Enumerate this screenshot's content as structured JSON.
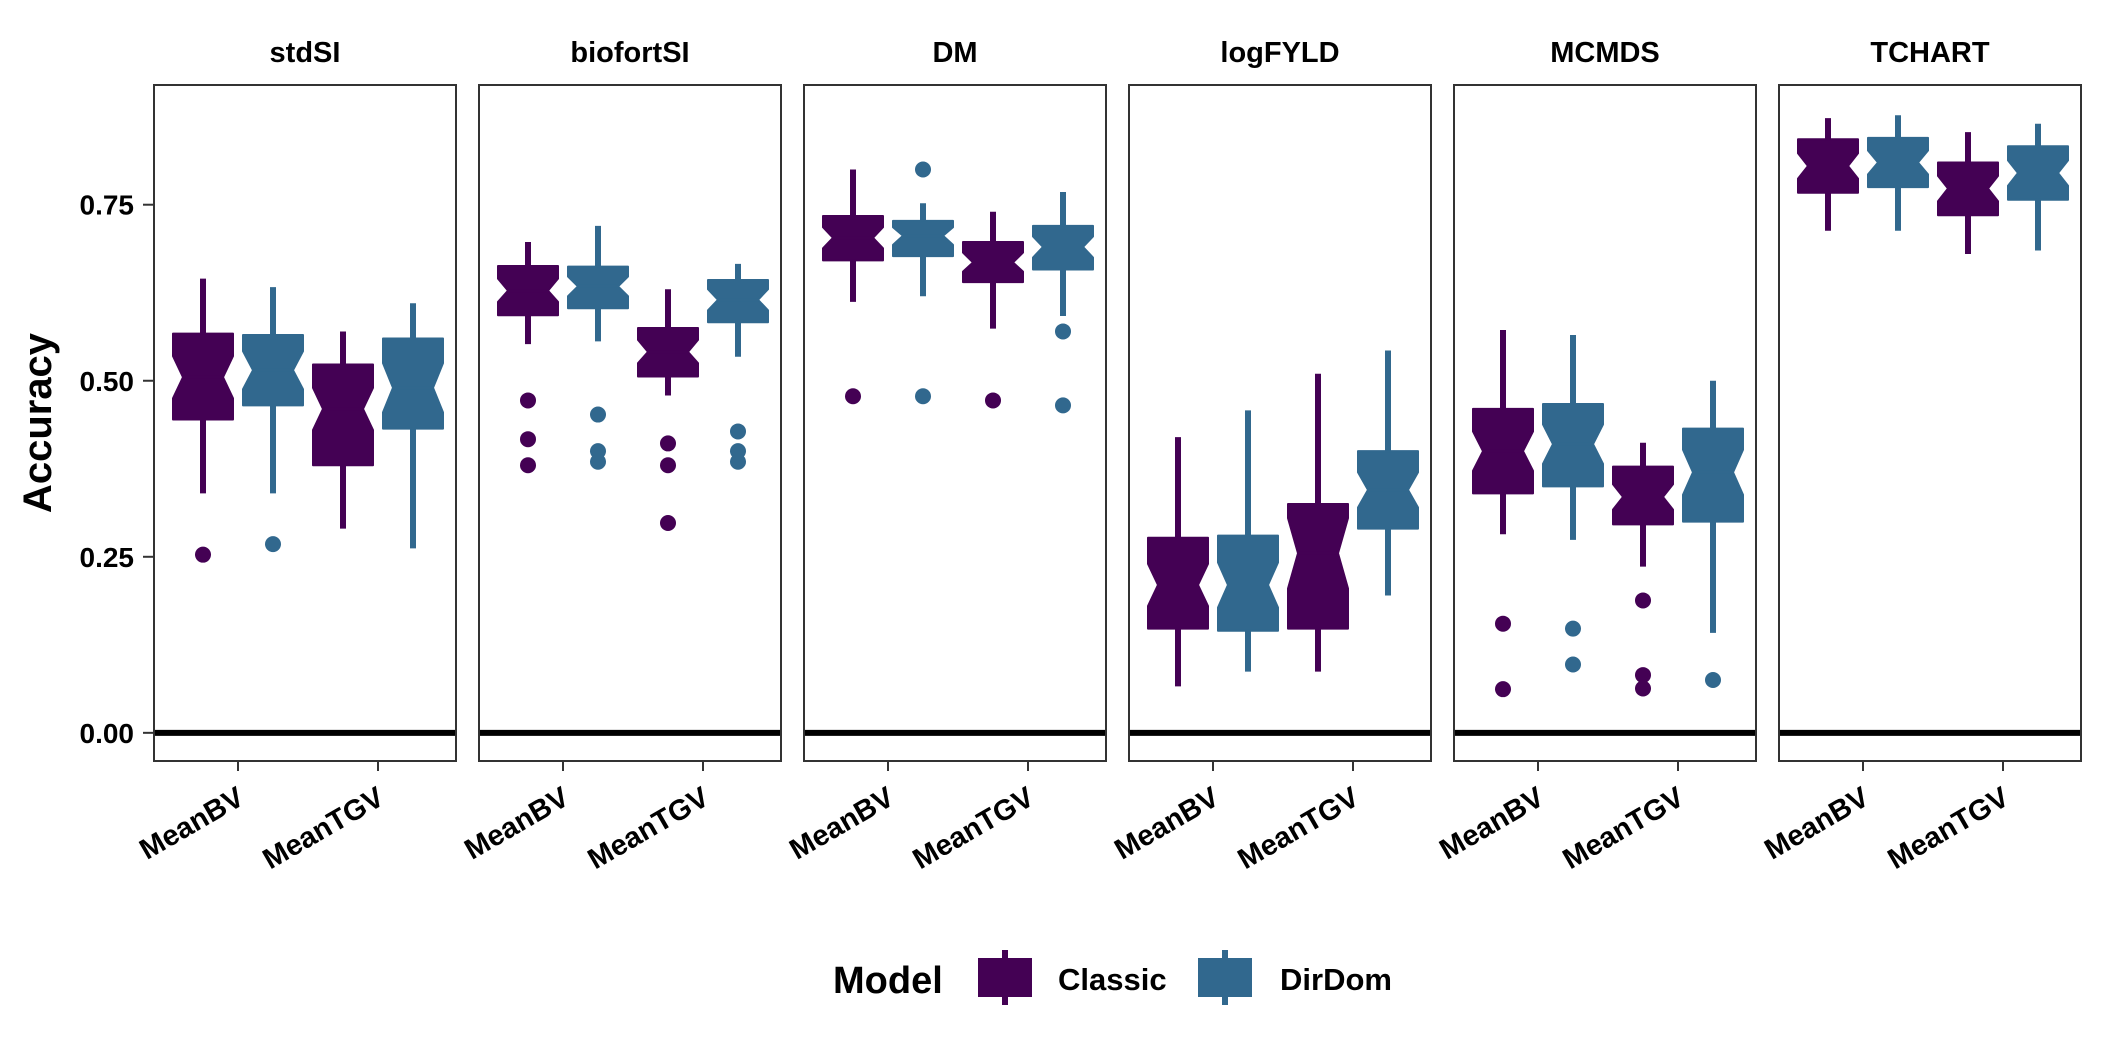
{
  "chart_data": {
    "type": "boxplot",
    "ylabel": "Accuracy",
    "yticks": [
      "0.00",
      "0.25",
      "0.50",
      "0.75"
    ],
    "ylim": [
      -0.04,
      0.92
    ],
    "reference_line": 0,
    "categories": [
      "MeanBV",
      "MeanTGV"
    ],
    "legend": {
      "title": "Model",
      "position": "bottom",
      "entries": [
        {
          "name": "Classic",
          "color": "#440154"
        },
        {
          "name": "DirDom",
          "color": "#31688E"
        }
      ]
    },
    "colors": {
      "Classic": "#440154",
      "DirDom": "#31688E"
    },
    "facets": [
      {
        "title": "stdSI",
        "boxes": {
          "MeanBV": {
            "Classic": {
              "q1": 0.445,
              "median": 0.505,
              "q3": 0.567,
              "lo": 0.34,
              "hi": 0.645,
              "notch": [
                0.475,
                0.535
              ],
              "outliers": [
                0.253
              ]
            },
            "DirDom": {
              "q1": 0.465,
              "median": 0.515,
              "q3": 0.565,
              "lo": 0.34,
              "hi": 0.633,
              "notch": [
                0.488,
                0.542
              ],
              "outliers": [
                0.268
              ]
            }
          },
          "MeanTGV": {
            "Classic": {
              "q1": 0.38,
              "median": 0.46,
              "q3": 0.523,
              "lo": 0.29,
              "hi": 0.57,
              "notch": [
                0.43,
                0.49
              ],
              "outliers": []
            },
            "DirDom": {
              "q1": 0.432,
              "median": 0.49,
              "q3": 0.56,
              "lo": 0.262,
              "hi": 0.61,
              "notch": [
                0.455,
                0.525
              ],
              "outliers": []
            }
          }
        }
      },
      {
        "title": "biofortSI",
        "boxes": {
          "MeanBV": {
            "Classic": {
              "q1": 0.593,
              "median": 0.628,
              "q3": 0.663,
              "lo": 0.552,
              "hi": 0.697,
              "notch": [
                0.612,
                0.645
              ],
              "outliers": [
                0.472,
                0.417,
                0.38
              ]
            },
            "DirDom": {
              "q1": 0.603,
              "median": 0.634,
              "q3": 0.662,
              "lo": 0.556,
              "hi": 0.72,
              "notch": [
                0.62,
                0.648
              ],
              "outliers": [
                0.452,
                0.4,
                0.385
              ]
            }
          },
          "MeanTGV": {
            "Classic": {
              "q1": 0.506,
              "median": 0.541,
              "q3": 0.575,
              "lo": 0.479,
              "hi": 0.63,
              "notch": [
                0.525,
                0.558
              ],
              "outliers": [
                0.411,
                0.38,
                0.298
              ]
            },
            "DirDom": {
              "q1": 0.583,
              "median": 0.615,
              "q3": 0.643,
              "lo": 0.534,
              "hi": 0.666,
              "notch": [
                0.6,
                0.63
              ],
              "outliers": [
                0.428,
                0.4,
                0.385
              ]
            }
          }
        }
      },
      {
        "title": "DM",
        "boxes": {
          "MeanBV": {
            "Classic": {
              "q1": 0.671,
              "median": 0.703,
              "q3": 0.734,
              "lo": 0.612,
              "hi": 0.8,
              "notch": [
                0.688,
                0.718
              ],
              "outliers": [
                0.478
              ]
            },
            "DirDom": {
              "q1": 0.677,
              "median": 0.706,
              "q3": 0.727,
              "lo": 0.62,
              "hi": 0.752,
              "notch": [
                0.693,
                0.718
              ],
              "outliers": [
                0.8,
                0.478
              ]
            }
          },
          "MeanTGV": {
            "Classic": {
              "q1": 0.64,
              "median": 0.668,
              "q3": 0.697,
              "lo": 0.574,
              "hi": 0.74,
              "notch": [
                0.655,
                0.682
              ],
              "outliers": [
                0.472
              ]
            },
            "DirDom": {
              "q1": 0.658,
              "median": 0.69,
              "q3": 0.72,
              "lo": 0.592,
              "hi": 0.768,
              "notch": [
                0.675,
                0.705
              ],
              "outliers": [
                0.57,
                0.465
              ]
            }
          }
        }
      },
      {
        "title": "logFYLD",
        "boxes": {
          "MeanBV": {
            "Classic": {
              "q1": 0.148,
              "median": 0.21,
              "q3": 0.277,
              "lo": 0.066,
              "hi": 0.42,
              "notch": [
                0.18,
                0.24
              ],
              "outliers": []
            },
            "DirDom": {
              "q1": 0.145,
              "median": 0.21,
              "q3": 0.28,
              "lo": 0.087,
              "hi": 0.458,
              "notch": [
                0.178,
                0.242
              ],
              "outliers": []
            }
          },
          "MeanTGV": {
            "Classic": {
              "q1": 0.148,
              "median": 0.255,
              "q3": 0.325,
              "lo": 0.087,
              "hi": 0.51,
              "notch": [
                0.205,
                0.305
              ],
              "outliers": []
            },
            "DirDom": {
              "q1": 0.29,
              "median": 0.345,
              "q3": 0.4,
              "lo": 0.195,
              "hi": 0.543,
              "notch": [
                0.32,
                0.37
              ],
              "outliers": []
            }
          }
        }
      },
      {
        "title": "MCMDS",
        "boxes": {
          "MeanBV": {
            "Classic": {
              "q1": 0.34,
              "median": 0.4,
              "q3": 0.46,
              "lo": 0.282,
              "hi": 0.572,
              "notch": [
                0.372,
                0.428
              ],
              "outliers": [
                0.155,
                0.062
              ]
            },
            "DirDom": {
              "q1": 0.35,
              "median": 0.41,
              "q3": 0.467,
              "lo": 0.274,
              "hi": 0.565,
              "notch": [
                0.382,
                0.438
              ],
              "outliers": [
                0.148,
                0.097
              ]
            }
          },
          "MeanTGV": {
            "Classic": {
              "q1": 0.296,
              "median": 0.335,
              "q3": 0.378,
              "lo": 0.236,
              "hi": 0.412,
              "notch": [
                0.317,
                0.353
              ],
              "outliers": [
                0.188,
                0.082,
                0.063
              ]
            },
            "DirDom": {
              "q1": 0.3,
              "median": 0.37,
              "q3": 0.432,
              "lo": 0.142,
              "hi": 0.5,
              "notch": [
                0.338,
                0.402
              ],
              "outliers": [
                0.075
              ]
            }
          }
        }
      },
      {
        "title": "TCHART",
        "boxes": {
          "MeanBV": {
            "Classic": {
              "q1": 0.767,
              "median": 0.805,
              "q3": 0.843,
              "lo": 0.713,
              "hi": 0.873,
              "notch": [
                0.787,
                0.823
              ],
              "outliers": []
            },
            "DirDom": {
              "q1": 0.775,
              "median": 0.81,
              "q3": 0.845,
              "lo": 0.713,
              "hi": 0.877,
              "notch": [
                0.793,
                0.827
              ],
              "outliers": []
            }
          },
          "MeanTGV": {
            "Classic": {
              "q1": 0.735,
              "median": 0.773,
              "q3": 0.81,
              "lo": 0.68,
              "hi": 0.853,
              "notch": [
                0.755,
                0.791
              ],
              "outliers": []
            },
            "DirDom": {
              "q1": 0.757,
              "median": 0.795,
              "q3": 0.833,
              "lo": 0.685,
              "hi": 0.865,
              "notch": [
                0.777,
                0.813
              ],
              "outliers": []
            }
          }
        }
      }
    ]
  }
}
